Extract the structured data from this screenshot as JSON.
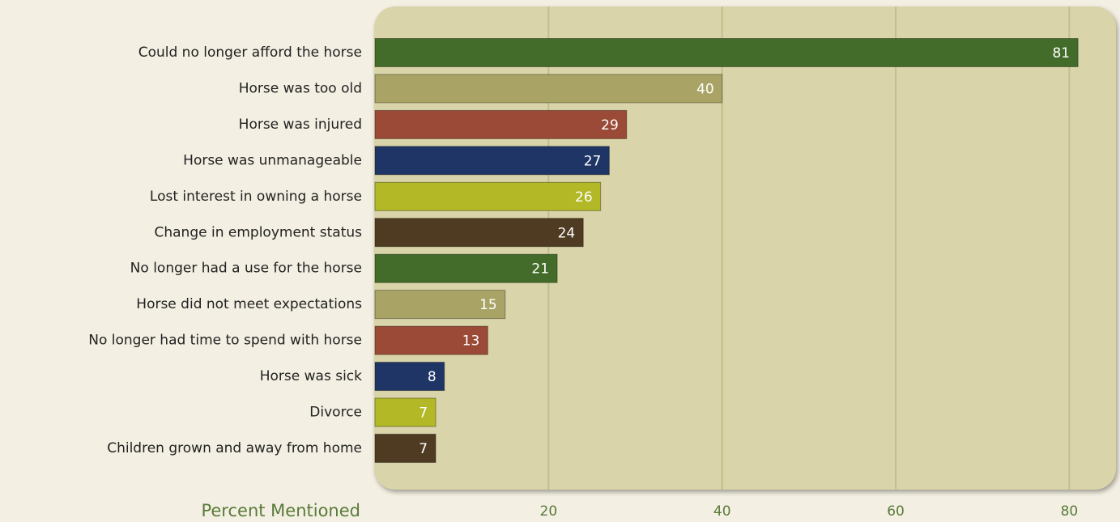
{
  "chart_data": {
    "type": "bar",
    "orientation": "horizontal",
    "x_label": "Percent Mentioned",
    "categories": [
      "Could no longer afford the horse",
      "Horse was too old",
      "Horse was injured",
      "Horse was unmanageable",
      "Lost interest in owning a horse",
      "Change in employment status",
      "No longer had a use for the horse",
      "Horse did not meet expectations",
      "No longer had time to spend with horse",
      "Horse was sick",
      "Divorce",
      "Children grown and away from home"
    ],
    "values": [
      81,
      40,
      29,
      27,
      26,
      24,
      21,
      15,
      13,
      8,
      7,
      7
    ],
    "colors": [
      "#436b29",
      "#a9a466",
      "#9a4a37",
      "#1e3565",
      "#b2b826",
      "#4f3a22",
      "#436b29",
      "#a9a466",
      "#9a4a37",
      "#1e3565",
      "#b2b826",
      "#4f3a22"
    ],
    "xlim": [
      0,
      85
    ],
    "xticks": [
      20,
      40,
      60,
      80
    ],
    "grid": true
  }
}
